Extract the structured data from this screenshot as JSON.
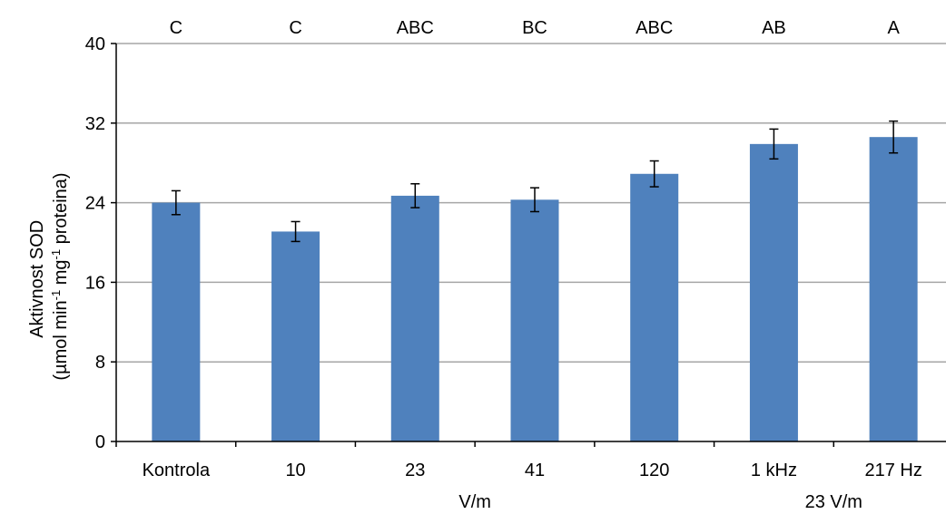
{
  "chart_data": {
    "type": "bar",
    "categories": [
      "Kontrola",
      "10",
      "23",
      "41",
      "120",
      "1 kHz",
      "217 Hz"
    ],
    "values": [
      24.0,
      21.1,
      24.7,
      24.3,
      26.9,
      29.9,
      30.6
    ],
    "errors": [
      1.2,
      1.0,
      1.2,
      1.2,
      1.3,
      1.5,
      1.6
    ],
    "significance_letters": [
      "C",
      "C",
      "ABC",
      "BC",
      "ABC",
      "AB",
      "A"
    ],
    "group_labels": [
      "V/m",
      "23 V/m"
    ],
    "ylabel_line1": "Aktivnost SOD",
    "ylabel_line2_parts": [
      "(µmol min",
      "-1",
      " mg",
      "-1",
      " proteina)"
    ],
    "ylim": [
      0,
      40
    ],
    "yticks": [
      0,
      8,
      16,
      24,
      32,
      40
    ],
    "grid": true,
    "bar_color": "#4f81bd",
    "grid_color": "#a6a6a6"
  }
}
